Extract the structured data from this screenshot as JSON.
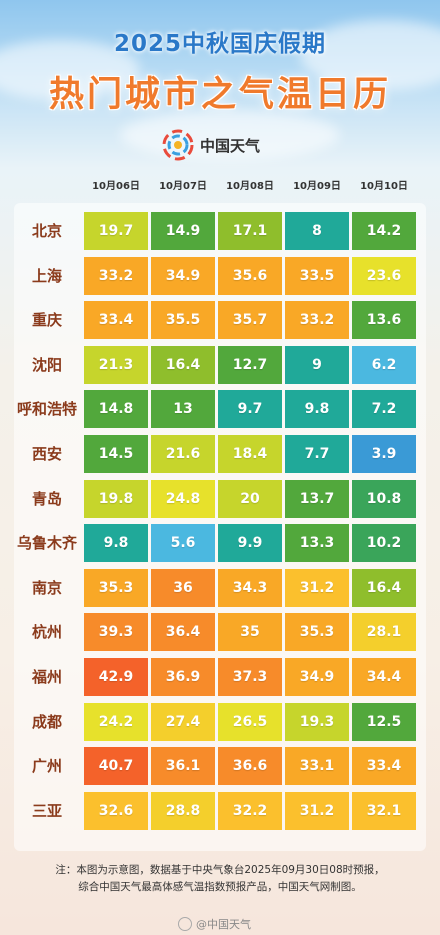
{
  "header": {
    "title_top": "2025中秋国庆假期",
    "title_main": "热门城市之气温日历",
    "logo_text": "中国天气"
  },
  "columns": [
    "10月06日",
    "10月07日",
    "10月08日",
    "10月09日",
    "10月10日"
  ],
  "rows": [
    {
      "city": "北京",
      "values": [
        "19.7",
        "14.9",
        "17.1",
        "8",
        "14.2"
      ]
    },
    {
      "city": "上海",
      "values": [
        "33.2",
        "34.9",
        "35.6",
        "33.5",
        "23.6"
      ]
    },
    {
      "city": "重庆",
      "values": [
        "33.4",
        "35.5",
        "35.7",
        "33.2",
        "13.6"
      ]
    },
    {
      "city": "沈阳",
      "values": [
        "21.3",
        "16.4",
        "12.7",
        "9",
        "6.2"
      ]
    },
    {
      "city": "呼和浩特",
      "values": [
        "14.8",
        "13",
        "9.7",
        "9.8",
        "7.2"
      ]
    },
    {
      "city": "西安",
      "values": [
        "14.5",
        "21.6",
        "18.4",
        "7.7",
        "3.9"
      ]
    },
    {
      "city": "青岛",
      "values": [
        "19.8",
        "24.8",
        "20",
        "13.7",
        "10.8"
      ]
    },
    {
      "city": "乌鲁木齐",
      "values": [
        "9.8",
        "5.6",
        "9.9",
        "13.3",
        "10.2"
      ]
    },
    {
      "city": "南京",
      "values": [
        "35.3",
        "36",
        "34.3",
        "31.2",
        "16.4"
      ]
    },
    {
      "city": "杭州",
      "values": [
        "39.3",
        "36.4",
        "35",
        "35.3",
        "28.1"
      ]
    },
    {
      "city": "福州",
      "values": [
        "42.9",
        "36.9",
        "37.3",
        "34.9",
        "34.4"
      ]
    },
    {
      "city": "成都",
      "values": [
        "24.2",
        "27.4",
        "26.5",
        "19.3",
        "12.5"
      ]
    },
    {
      "city": "广州",
      "values": [
        "40.7",
        "36.1",
        "36.6",
        "33.1",
        "33.4"
      ]
    },
    {
      "city": "三亚",
      "values": [
        "32.6",
        "28.8",
        "32.2",
        "31.2",
        "32.1"
      ]
    }
  ],
  "colors": {
    "title_blue": "#2a78c8",
    "title_orange": "#f07a2c",
    "city_label": "#8b3b1c"
  },
  "note": {
    "line1": "注：本图为示意图，数据基于中央气象台2025年09月30日08时预报，",
    "line2": "综合中国天气最高体感气温指数预报产品，中国天气网制图。"
  },
  "watermark": "@中国天气"
}
